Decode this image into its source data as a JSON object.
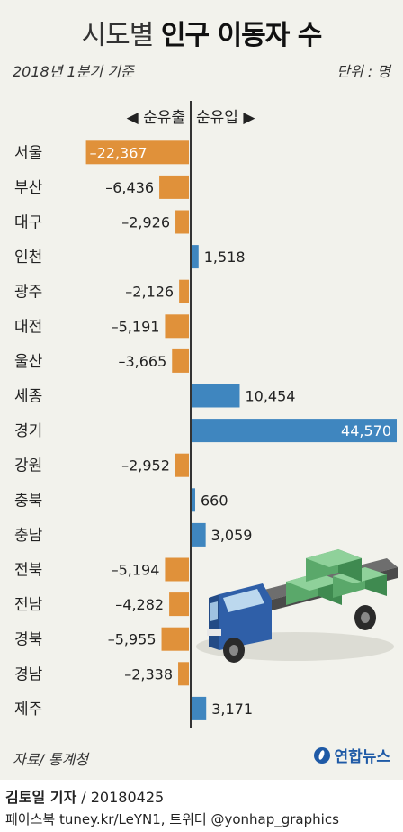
{
  "title": {
    "light": "시도별 ",
    "bold": "인구 이동자 수"
  },
  "subtitle": "2018년 1분기 기준",
  "unit": "단위 : 명",
  "header": {
    "out": "◀ 순유출",
    "in": "순유입 ▶"
  },
  "source": "자료/ 통계청",
  "brand": "연합뉴스",
  "credit": {
    "reporter": "김토일 기자",
    "date": " / 20180425"
  },
  "social": "페이스북 tuney.kr/LeYN1, 트위터 @yonhap_graphics",
  "colors": {
    "outflow": "#e0913a",
    "inflow": "#3f86bf",
    "axis": "#333333"
  },
  "illustration": "truck-with-boxes",
  "chart_data": {
    "type": "bar",
    "orientation": "horizontal",
    "categories": [
      "서울",
      "부산",
      "대구",
      "인천",
      "광주",
      "대전",
      "울산",
      "세종",
      "경기",
      "강원",
      "충북",
      "충남",
      "전북",
      "전남",
      "경북",
      "경남",
      "제주"
    ],
    "values": [
      -22367,
      -6436,
      -2926,
      1518,
      -2126,
      -5191,
      -3665,
      10454,
      44570,
      -2952,
      660,
      3059,
      -5194,
      -4282,
      -5955,
      -2338,
      3171
    ],
    "labels": [
      "–22,367",
      "–6,436",
      "–2,926",
      "1,518",
      "–2,126",
      "–5,191",
      "–3,665",
      "10,454",
      "44,570",
      "–2,952",
      "660",
      "3,059",
      "–5,194",
      "–4,282",
      "–5,955",
      "–2,338",
      "3,171"
    ],
    "legend": "none",
    "grid": false
  }
}
